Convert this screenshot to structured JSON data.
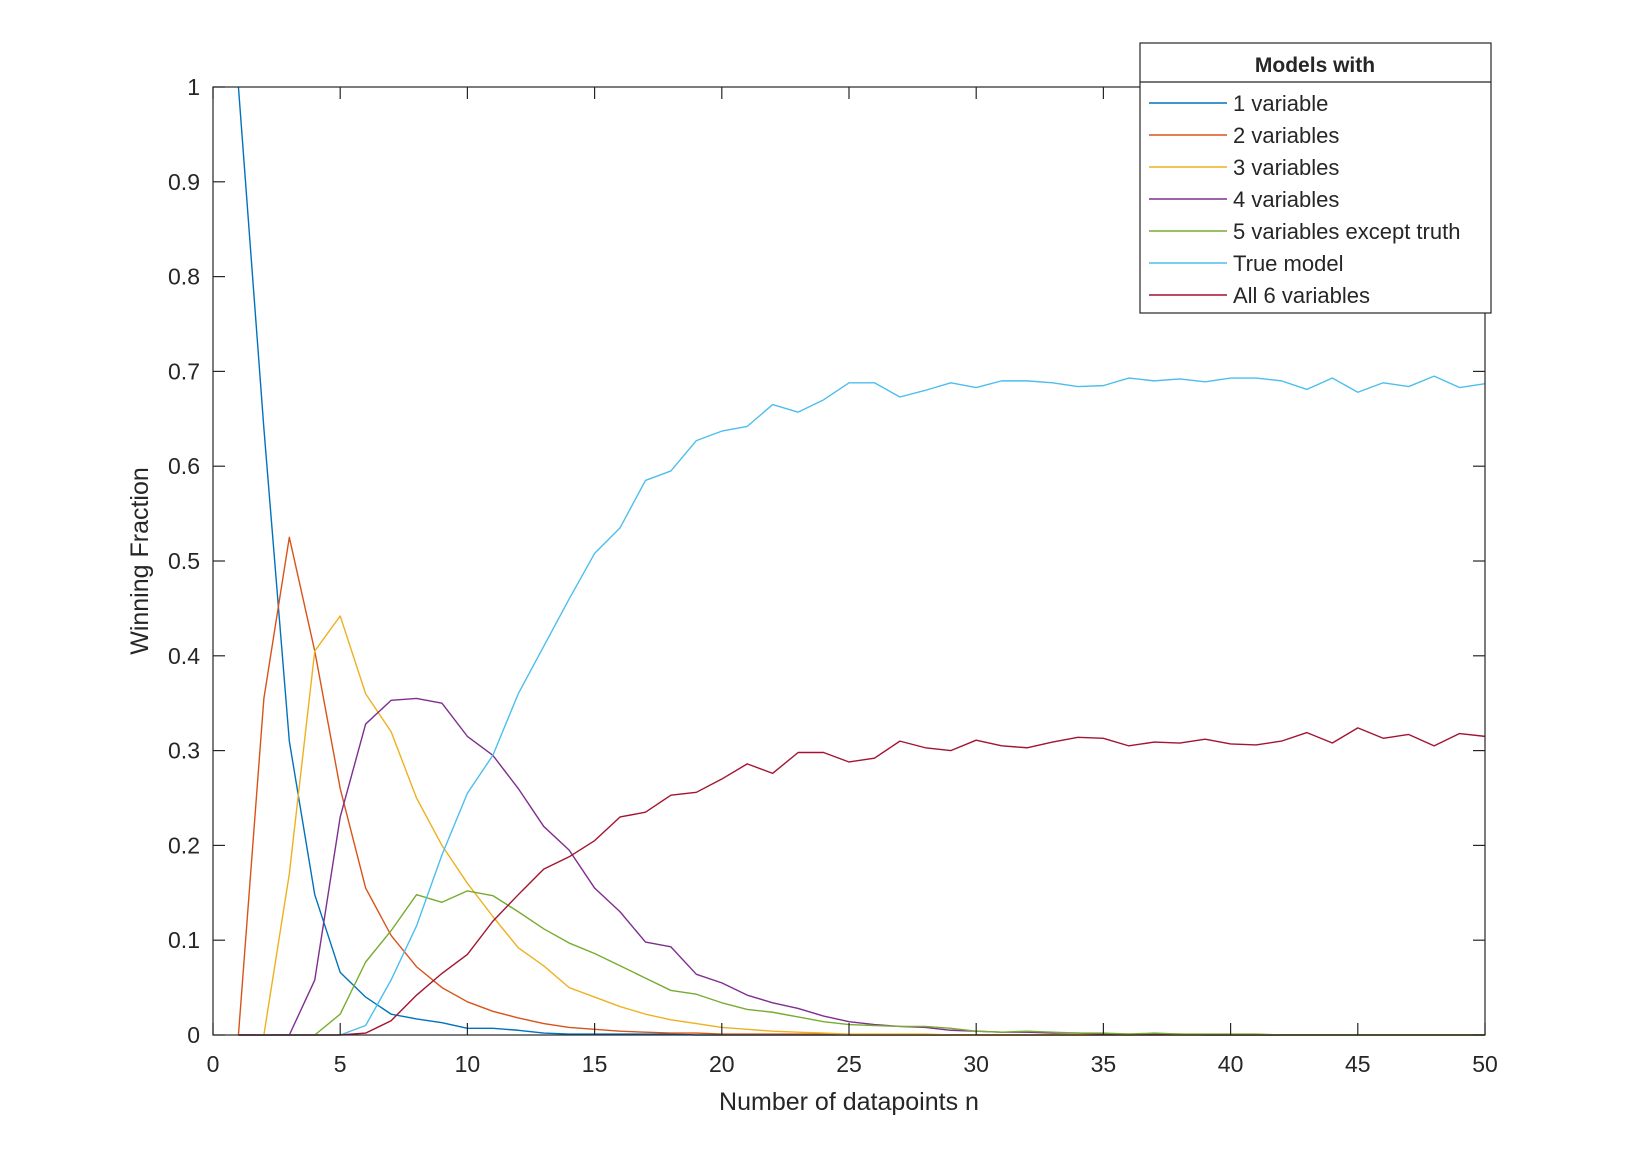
{
  "chart_data": {
    "type": "line",
    "title": "",
    "xlabel": "Number of datapoints n",
    "ylabel": "Winning Fraction",
    "xlim": [
      0,
      50
    ],
    "ylim": [
      0,
      1
    ],
    "xticks": [
      0,
      5,
      10,
      15,
      20,
      25,
      30,
      35,
      40,
      45,
      50
    ],
    "yticks": [
      0,
      0.1,
      0.2,
      0.3,
      0.4,
      0.5,
      0.6,
      0.7,
      0.8,
      0.9,
      1
    ],
    "ytick_labels": [
      "0",
      "0.1",
      "0.2",
      "0.3",
      "0.4",
      "0.5",
      "0.6",
      "0.7",
      "0.8",
      "0.9",
      "1"
    ],
    "grid": false,
    "box": true,
    "legend": {
      "title": "Models with",
      "placement": "top-right"
    },
    "x": [
      1,
      2,
      3,
      4,
      5,
      6,
      7,
      8,
      9,
      10,
      11,
      12,
      13,
      14,
      15,
      16,
      17,
      18,
      19,
      20,
      21,
      22,
      23,
      24,
      25,
      26,
      27,
      28,
      29,
      30,
      31,
      32,
      33,
      34,
      35,
      36,
      37,
      38,
      39,
      40,
      41,
      42,
      43,
      44,
      45,
      46,
      47,
      48,
      49,
      50
    ],
    "series": [
      {
        "name": "1 variable",
        "color": "#0072BD",
        "values": [
          1.0,
          0.64,
          0.31,
          0.148,
          0.066,
          0.04,
          0.022,
          0.017,
          0.013,
          0.007,
          0.007,
          0.005,
          0.002,
          0.001,
          0.001,
          0.001,
          0.001,
          0.001,
          0,
          0,
          0,
          0,
          0,
          0,
          0,
          0,
          0,
          0,
          0,
          0,
          0,
          0,
          0,
          0,
          0,
          0,
          0,
          0,
          0,
          0,
          0,
          0,
          0,
          0,
          0,
          0,
          0,
          0,
          0,
          0
        ]
      },
      {
        "name": "2 variables",
        "color": "#D95319",
        "values": [
          0,
          0.355,
          0.525,
          0.405,
          0.26,
          0.155,
          0.105,
          0.072,
          0.05,
          0.035,
          0.025,
          0.018,
          0.012,
          0.008,
          0.006,
          0.004,
          0.003,
          0.002,
          0.002,
          0.001,
          0.001,
          0.001,
          0.001,
          0.001,
          0,
          0,
          0,
          0,
          0,
          0,
          0,
          0,
          0,
          0,
          0,
          0,
          0,
          0,
          0,
          0,
          0,
          0,
          0,
          0,
          0,
          0,
          0,
          0,
          0,
          0
        ]
      },
      {
        "name": "3 variables",
        "color": "#EDB120",
        "values": [
          0,
          0,
          0.17,
          0.405,
          0.442,
          0.36,
          0.32,
          0.25,
          0.2,
          0.16,
          0.125,
          0.092,
          0.073,
          0.05,
          0.04,
          0.03,
          0.022,
          0.016,
          0.012,
          0.008,
          0.006,
          0.004,
          0.003,
          0.002,
          0.001,
          0.001,
          0.001,
          0.001,
          0,
          0,
          0,
          0,
          0,
          0,
          0,
          0,
          0,
          0,
          0,
          0,
          0,
          0,
          0,
          0,
          0,
          0,
          0,
          0,
          0,
          0
        ]
      },
      {
        "name": "4 variables",
        "color": "#7E2F8E",
        "values": [
          0,
          0,
          0,
          0.058,
          0.23,
          0.328,
          0.353,
          0.355,
          0.35,
          0.315,
          0.295,
          0.26,
          0.22,
          0.195,
          0.155,
          0.13,
          0.098,
          0.093,
          0.064,
          0.055,
          0.042,
          0.034,
          0.028,
          0.02,
          0.014,
          0.011,
          0.009,
          0.008,
          0.005,
          0.004,
          0.003,
          0.003,
          0.002,
          0.002,
          0.001,
          0.001,
          0.001,
          0.001,
          0,
          0,
          0,
          0,
          0,
          0,
          0,
          0,
          0,
          0,
          0,
          0
        ]
      },
      {
        "name": "5 variables except truth",
        "color": "#77AC30",
        "values": [
          0,
          0,
          0,
          0,
          0.022,
          0.077,
          0.11,
          0.148,
          0.14,
          0.152,
          0.147,
          0.13,
          0.112,
          0.097,
          0.086,
          0.073,
          0.06,
          0.047,
          0.043,
          0.034,
          0.027,
          0.024,
          0.019,
          0.014,
          0.011,
          0.01,
          0.009,
          0.009,
          0.007,
          0.004,
          0.003,
          0.004,
          0.003,
          0.002,
          0.002,
          0.001,
          0.002,
          0.001,
          0.001,
          0.001,
          0.001,
          0,
          0,
          0,
          0,
          0,
          0,
          0,
          0,
          0
        ]
      },
      {
        "name": "True model",
        "color": "#4DBEEE",
        "values": [
          0,
          0,
          0,
          0,
          0,
          0.01,
          0.058,
          0.115,
          0.19,
          0.255,
          0.295,
          0.36,
          0.41,
          0.46,
          0.508,
          0.535,
          0.585,
          0.595,
          0.627,
          0.637,
          0.642,
          0.665,
          0.657,
          0.67,
          0.688,
          0.688,
          0.673,
          0.68,
          0.688,
          0.683,
          0.69,
          0.69,
          0.688,
          0.684,
          0.685,
          0.693,
          0.69,
          0.692,
          0.689,
          0.693,
          0.693,
          0.69,
          0.681,
          0.693,
          0.678,
          0.688,
          0.684,
          0.695,
          0.683,
          0.687
        ]
      },
      {
        "name": "All 6 variables",
        "color": "#A2142F",
        "values": [
          0,
          0,
          0,
          0,
          0,
          0.002,
          0.015,
          0.042,
          0.065,
          0.085,
          0.12,
          0.148,
          0.175,
          0.188,
          0.205,
          0.23,
          0.235,
          0.253,
          0.256,
          0.27,
          0.286,
          0.276,
          0.298,
          0.298,
          0.288,
          0.292,
          0.31,
          0.303,
          0.3,
          0.311,
          0.305,
          0.303,
          0.309,
          0.314,
          0.313,
          0.305,
          0.309,
          0.308,
          0.312,
          0.307,
          0.306,
          0.31,
          0.319,
          0.308,
          0.324,
          0.313,
          0.317,
          0.305,
          0.318,
          0.315
        ]
      }
    ]
  }
}
